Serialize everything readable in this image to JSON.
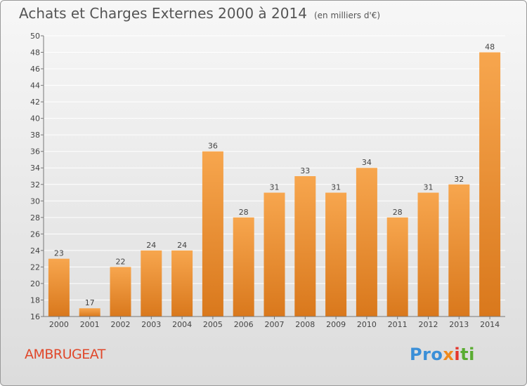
{
  "title": "Achats et Charges Externes 2000 à 2014",
  "subtitle": "(en milliers d'€)",
  "commune": "AMBRUGEAT",
  "logo": {
    "p1": "Pro",
    "p2": "x",
    "p3": "i",
    "p4": "ti"
  },
  "colors": {
    "bar_light": "#f7a64e",
    "bar_dark": "#d9781c",
    "text": "#555555",
    "commune": "#e0472a"
  },
  "chart_data": {
    "type": "bar",
    "categories": [
      "2000",
      "2001",
      "2002",
      "2003",
      "2004",
      "2005",
      "2006",
      "2007",
      "2008",
      "2009",
      "2010",
      "2011",
      "2012",
      "2013",
      "2014"
    ],
    "values": [
      23,
      17,
      22,
      24,
      24,
      36,
      28,
      31,
      33,
      31,
      34,
      28,
      31,
      32,
      48
    ],
    "ylim": [
      16,
      50
    ],
    "yticks": [
      16,
      18,
      20,
      22,
      24,
      26,
      28,
      30,
      32,
      34,
      36,
      38,
      40,
      42,
      44,
      46,
      48,
      50
    ],
    "grid": true,
    "title": "Achats et Charges Externes 2000 à 2014",
    "subtitle": "(en milliers d'€)"
  }
}
